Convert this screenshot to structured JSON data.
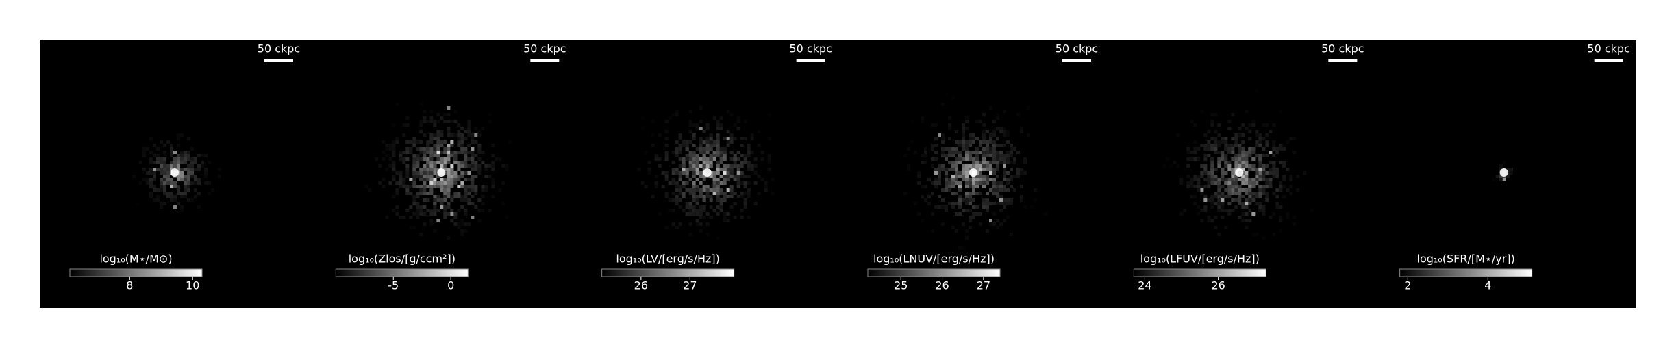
{
  "chart_data": [
    {
      "type": "image",
      "scale_label": "50 ckpc",
      "colorbar_label": "log₁₀(M⋆/M⊙)",
      "clim": [
        6.1,
        10.3
      ],
      "cticks": [
        8,
        10
      ]
    },
    {
      "type": "image",
      "scale_label": "50 ckpc",
      "colorbar_label": "log₁₀(Zlos/[g/ccm²])",
      "clim": [
        -10,
        1.5
      ],
      "cticks": [
        -5,
        0
      ]
    },
    {
      "type": "image",
      "scale_label": "50 ckpc",
      "colorbar_label": "log₁₀(LV/[erg/s/Hz])",
      "clim": [
        25.2,
        27.9
      ],
      "cticks": [
        26,
        27
      ]
    },
    {
      "type": "image",
      "scale_label": "50 ckpc",
      "colorbar_label": "log₁₀(LNUV/[erg/s/Hz])",
      "clim": [
        24.2,
        27.4
      ],
      "cticks": [
        25,
        26,
        27
      ]
    },
    {
      "type": "image",
      "scale_label": "50 ckpc",
      "colorbar_label": "log₁₀(LFUV/[erg/s/Hz])",
      "clim": [
        23.7,
        27.3
      ],
      "cticks": [
        24,
        26
      ]
    },
    {
      "type": "image",
      "scale_label": "50 ckpc",
      "colorbar_label": "log₁₀(SFR/[M⋆/yr])",
      "clim": [
        1.8,
        5.1
      ],
      "cticks": [
        2,
        4
      ]
    }
  ]
}
